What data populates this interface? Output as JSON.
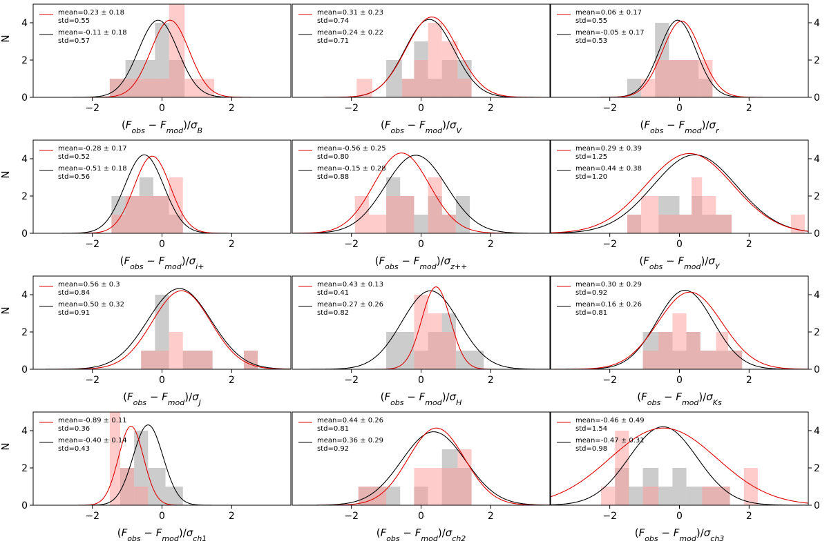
{
  "figure": {
    "ylabel": "N",
    "ylim": [
      0,
      5
    ],
    "yticks": [
      0,
      2,
      4
    ],
    "xlim": [
      -3.7,
      3.7
    ],
    "xticks": [
      -2,
      0,
      2
    ],
    "colors": {
      "red_bar": "#ff9a9a",
      "red_opacity": 0.5,
      "grey_bar": "#9a9a9a",
      "grey_opacity": 0.5,
      "red_line": "#e00000",
      "black_line": "#000000",
      "axes": "#000000"
    }
  },
  "chart_data": [
    {
      "type": "bar",
      "title": "",
      "xlabel": "(Fobs − Fmod)/σ",
      "xlabel_sub": "B",
      "legend": {
        "red": [
          "mean=0.23 ± 0.18",
          "std=0.55"
        ],
        "black": [
          "mean=-0.11 ± 0.18",
          "std=0.57"
        ]
      },
      "red_bars": [
        {
          "x0": -1.5,
          "x1": -0.65,
          "h": 1
        },
        {
          "x0": -0.65,
          "x1": -0.2,
          "h": 1
        },
        {
          "x0": -0.2,
          "x1": 0.2,
          "h": 1
        },
        {
          "x0": 0.2,
          "x1": 0.65,
          "h": 5
        },
        {
          "x0": 0.65,
          "x1": 1.5,
          "h": 1
        }
      ],
      "grey_bars": [
        {
          "x0": -1.5,
          "x1": -1.05,
          "h": 1
        },
        {
          "x0": -1.05,
          "x1": -0.2,
          "h": 2
        },
        {
          "x0": -0.2,
          "x1": 0.2,
          "h": 4
        },
        {
          "x0": 0.2,
          "x1": 0.65,
          "h": 2
        }
      ],
      "red_curve": {
        "mean": 0.23,
        "std": 0.55,
        "scale": 4.14
      },
      "black_curve": {
        "mean": -0.11,
        "std": 0.57,
        "scale": 4.14
      }
    },
    {
      "type": "bar",
      "title": "",
      "xlabel": "(Fobs − Fmod)/σ",
      "xlabel_sub": "V",
      "legend": {
        "red": [
          "mean=0.31 ± 0.23",
          "std=0.74"
        ],
        "black": [
          "mean=0.24 ± 0.22",
          "std=0.71"
        ]
      },
      "red_bars": [
        {
          "x0": -1.85,
          "x1": -1.4,
          "h": 1
        },
        {
          "x0": -0.55,
          "x1": -0.2,
          "h": 1
        },
        {
          "x0": -0.2,
          "x1": 0.2,
          "h": 2
        },
        {
          "x0": 0.2,
          "x1": 0.6,
          "h": 4
        },
        {
          "x0": 0.6,
          "x1": 1.05,
          "h": 3
        },
        {
          "x0": 1.05,
          "x1": 1.45,
          "h": 1
        }
      ],
      "grey_bars": [
        {
          "x0": -1.0,
          "x1": -0.55,
          "h": 2
        },
        {
          "x0": -0.55,
          "x1": -0.2,
          "h": 1
        },
        {
          "x0": -0.2,
          "x1": 0.2,
          "h": 3
        },
        {
          "x0": 0.2,
          "x1": 0.6,
          "h": 1
        },
        {
          "x0": 0.6,
          "x1": 1.05,
          "h": 2
        },
        {
          "x0": 1.05,
          "x1": 1.45,
          "h": 2
        }
      ],
      "red_curve": {
        "mean": 0.31,
        "std": 0.74,
        "scale": 4.31
      },
      "black_curve": {
        "mean": 0.24,
        "std": 0.71,
        "scale": 4.18
      }
    },
    {
      "type": "bar",
      "title": "",
      "xlabel": "(Fobs − Fmod)/σ",
      "xlabel_sub": "r",
      "legend": {
        "red": [
          "mean=0.06 ± 0.17",
          "std=0.55"
        ],
        "black": [
          "mean=-0.05 ± 0.17",
          "std=0.53"
        ]
      },
      "red_bars": [
        {
          "x0": -1.1,
          "x1": -0.7,
          "h": 1
        },
        {
          "x0": -0.7,
          "x1": -0.3,
          "h": 2
        },
        {
          "x0": -0.3,
          "x1": 0.15,
          "h": 2
        },
        {
          "x0": 0.15,
          "x1": 0.55,
          "h": 2
        },
        {
          "x0": 0.55,
          "x1": 0.95,
          "h": 2
        }
      ],
      "grey_bars": [
        {
          "x0": -1.5,
          "x1": -1.1,
          "h": 1
        },
        {
          "x0": -0.7,
          "x1": -0.3,
          "h": 4
        },
        {
          "x0": -0.3,
          "x1": 0.15,
          "h": 2
        },
        {
          "x0": 0.15,
          "x1": 0.55,
          "h": 2
        },
        {
          "x0": 0.55,
          "x1": 0.95,
          "h": 1
        }
      ],
      "red_curve": {
        "mean": 0.06,
        "std": 0.55,
        "scale": 4.09
      },
      "black_curve": {
        "mean": -0.05,
        "std": 0.53,
        "scale": 4.14
      }
    },
    {
      "type": "bar",
      "title": "",
      "xlabel": "(Fobs − Fmod)/σ",
      "xlabel_sub": "i+",
      "legend": {
        "red": [
          "mean=-0.28 ± 0.17",
          "std=0.52"
        ],
        "black": [
          "mean=-0.51 ± 0.18",
          "std=0.56"
        ]
      },
      "red_bars": [
        {
          "x0": -1.45,
          "x1": -1.05,
          "h": 1
        },
        {
          "x0": -1.05,
          "x1": -0.65,
          "h": 2
        },
        {
          "x0": -0.65,
          "x1": -0.25,
          "h": 2
        },
        {
          "x0": -0.25,
          "x1": 0.2,
          "h": 2
        },
        {
          "x0": 0.2,
          "x1": 0.6,
          "h": 3
        }
      ],
      "grey_bars": [
        {
          "x0": -1.45,
          "x1": -1.05,
          "h": 2
        },
        {
          "x0": -1.05,
          "x1": -0.65,
          "h": 2
        },
        {
          "x0": -0.65,
          "x1": -0.25,
          "h": 3
        },
        {
          "x0": -0.25,
          "x1": 0.2,
          "h": 2
        },
        {
          "x0": 0.2,
          "x1": 0.6,
          "h": 1
        }
      ],
      "red_curve": {
        "mean": -0.28,
        "std": 0.52,
        "scale": 4.14
      },
      "black_curve": {
        "mean": -0.51,
        "std": 0.56,
        "scale": 4.21
      }
    },
    {
      "type": "bar",
      "title": "",
      "xlabel": "(Fobs − Fmod)/σ",
      "xlabel_sub": "z++",
      "legend": {
        "red": [
          "mean=-0.56 ± 0.25",
          "std=0.80"
        ],
        "black": [
          "mean=-0.15 ± 0.28",
          "std=0.88"
        ]
      },
      "red_bars": [
        {
          "x0": -1.9,
          "x1": -1.5,
          "h": 2
        },
        {
          "x0": -1.5,
          "x1": -1.0,
          "h": 1
        },
        {
          "x0": -1.0,
          "x1": -0.6,
          "h": 2
        },
        {
          "x0": -0.6,
          "x1": -0.2,
          "h": 2
        },
        {
          "x0": 0.2,
          "x1": 0.6,
          "h": 3
        },
        {
          "x0": 0.6,
          "x1": 1.0,
          "h": 1
        }
      ],
      "grey_bars": [
        {
          "x0": -1.0,
          "x1": -0.6,
          "h": 3
        },
        {
          "x0": -0.6,
          "x1": -0.2,
          "h": 2
        },
        {
          "x0": -0.2,
          "x1": 0.2,
          "h": 1
        },
        {
          "x0": 0.2,
          "x1": 0.6,
          "h": 2
        },
        {
          "x0": 0.6,
          "x1": 1.0,
          "h": 1
        },
        {
          "x0": 1.0,
          "x1": 1.4,
          "h": 2
        }
      ],
      "red_curve": {
        "mean": -0.56,
        "std": 0.8,
        "scale": 4.31
      },
      "black_curve": {
        "mean": -0.15,
        "std": 0.88,
        "scale": 4.19
      }
    },
    {
      "type": "bar",
      "title": "",
      "xlabel": "(Fobs − Fmod)/σ",
      "xlabel_sub": "Y",
      "legend": {
        "red": [
          "mean=0.29 ± 0.39",
          "std=1.25"
        ],
        "black": [
          "mean=0.44 ± 0.38",
          "std=1.20"
        ]
      },
      "red_bars": [
        {
          "x0": -1.5,
          "x1": -1.1,
          "h": 1
        },
        {
          "x0": -1.1,
          "x1": -0.6,
          "h": 2
        },
        {
          "x0": -0.6,
          "x1": 0.0,
          "h": 1
        },
        {
          "x0": 0.0,
          "x1": 0.35,
          "h": 1
        },
        {
          "x0": 0.35,
          "x1": 0.65,
          "h": 3
        },
        {
          "x0": 0.65,
          "x1": 1.05,
          "h": 2
        },
        {
          "x0": 1.05,
          "x1": 1.5,
          "h": 1
        },
        {
          "x0": 3.2,
          "x1": 3.6,
          "h": 1
        }
      ],
      "grey_bars": [
        {
          "x0": -1.5,
          "x1": -1.1,
          "h": 1
        },
        {
          "x0": -0.6,
          "x1": 0.0,
          "h": 2
        },
        {
          "x0": 0.0,
          "x1": 0.35,
          "h": 1
        },
        {
          "x0": 0.35,
          "x1": 0.65,
          "h": 2
        },
        {
          "x0": 0.65,
          "x1": 1.05,
          "h": 1
        },
        {
          "x0": 1.05,
          "x1": 1.5,
          "h": 1
        }
      ],
      "red_curve": {
        "mean": 0.29,
        "std": 1.25,
        "scale": 4.28
      },
      "black_curve": {
        "mean": 0.44,
        "std": 1.2,
        "scale": 4.21
      }
    },
    {
      "type": "bar",
      "title": "",
      "xlabel": "(Fobs − Fmod)/σ",
      "xlabel_sub": "J",
      "legend": {
        "red": [
          "mean=0.56 ± 0.3",
          "std=0.84"
        ],
        "black": [
          "mean=0.50 ± 0.32",
          "std=0.91"
        ]
      },
      "red_bars": [
        {
          "x0": -0.6,
          "x1": -0.2,
          "h": 1
        },
        {
          "x0": -0.2,
          "x1": 0.2,
          "h": 1
        },
        {
          "x0": 0.2,
          "x1": 0.6,
          "h": 2
        },
        {
          "x0": 0.6,
          "x1": 1.45,
          "h": 1
        },
        {
          "x0": 2.35,
          "x1": 2.75,
          "h": 1
        }
      ],
      "grey_bars": [
        {
          "x0": -0.6,
          "x1": -0.2,
          "h": 1
        },
        {
          "x0": -0.2,
          "x1": 0.2,
          "h": 4
        },
        {
          "x0": 0.6,
          "x1": 1.45,
          "h": 1
        },
        {
          "x0": 2.35,
          "x1": 2.75,
          "h": 1
        }
      ],
      "red_curve": {
        "mean": 0.56,
        "std": 0.84,
        "scale": 4.21
      },
      "black_curve": {
        "mean": 0.5,
        "std": 0.91,
        "scale": 4.33
      }
    },
    {
      "type": "bar",
      "title": "",
      "xlabel": "(Fobs − Fmod)/σ",
      "xlabel_sub": "H",
      "legend": {
        "red": [
          "mean=0.43 ± 0.13",
          "std=0.41"
        ],
        "black": [
          "mean=0.27 ± 0.26",
          "std=0.82"
        ]
      },
      "red_bars": [
        {
          "x0": -0.2,
          "x1": 0.2,
          "h": 4
        },
        {
          "x0": 0.2,
          "x1": 0.6,
          "h": 3
        },
        {
          "x0": 0.6,
          "x1": 1.0,
          "h": 2
        }
      ],
      "grey_bars": [
        {
          "x0": -1.0,
          "x1": -0.2,
          "h": 2
        },
        {
          "x0": -0.2,
          "x1": 0.2,
          "h": 1
        },
        {
          "x0": 0.2,
          "x1": 0.6,
          "h": 2
        },
        {
          "x0": 0.6,
          "x1": 1.0,
          "h": 3
        },
        {
          "x0": 1.0,
          "x1": 1.8,
          "h": 1
        }
      ],
      "red_curve": {
        "mean": 0.43,
        "std": 0.41,
        "scale": 4.42
      },
      "black_curve": {
        "mean": 0.27,
        "std": 0.82,
        "scale": 4.21
      }
    },
    {
      "type": "bar",
      "title": "",
      "xlabel": "(Fobs − Fmod)/σ",
      "xlabel_sub": "Ks",
      "legend": {
        "red": [
          "mean=0.30 ± 0.29",
          "std=0.92"
        ],
        "black": [
          "mean=0.16 ± 0.26",
          "std=0.81"
        ]
      },
      "red_bars": [
        {
          "x0": -1.05,
          "x1": -0.6,
          "h": 1
        },
        {
          "x0": -0.6,
          "x1": -0.2,
          "h": 2
        },
        {
          "x0": -0.2,
          "x1": 0.2,
          "h": 3
        },
        {
          "x0": 0.2,
          "x1": 0.6,
          "h": 2
        },
        {
          "x0": 0.6,
          "x1": 1.05,
          "h": 1
        },
        {
          "x0": 1.05,
          "x1": 1.4,
          "h": 2
        },
        {
          "x0": 1.4,
          "x1": 1.8,
          "h": 1
        }
      ],
      "grey_bars": [
        {
          "x0": -1.05,
          "x1": -0.6,
          "h": 2
        },
        {
          "x0": -0.6,
          "x1": -0.2,
          "h": 2
        },
        {
          "x0": -0.2,
          "x1": 0.2,
          "h": 1
        },
        {
          "x0": 0.2,
          "x1": 0.6,
          "h": 2
        },
        {
          "x0": 0.6,
          "x1": 1.05,
          "h": 1
        },
        {
          "x0": 1.05,
          "x1": 1.4,
          "h": 1
        },
        {
          "x0": 1.4,
          "x1": 1.8,
          "h": 1
        }
      ],
      "red_curve": {
        "mean": 0.3,
        "std": 0.92,
        "scale": 4.14
      },
      "black_curve": {
        "mean": 0.16,
        "std": 0.81,
        "scale": 4.24
      }
    },
    {
      "type": "bar",
      "title": "",
      "xlabel": "(Fobs − Fmod)/σ",
      "xlabel_sub": "ch1",
      "legend": {
        "red": [
          "mean=-0.89 ± 0.11",
          "std=0.36"
        ],
        "black": [
          "mean=-0.40 ± 0.14",
          "std=0.43"
        ]
      },
      "red_bars": [
        {
          "x0": -1.5,
          "x1": -1.2,
          "h": 5
        },
        {
          "x0": -1.2,
          "x1": -0.8,
          "h": 2
        },
        {
          "x0": -0.8,
          "x1": -0.4,
          "h": 1
        }
      ],
      "grey_bars": [
        {
          "x0": -1.2,
          "x1": -0.8,
          "h": 2
        },
        {
          "x0": -0.8,
          "x1": -0.4,
          "h": 4
        },
        {
          "x0": -0.4,
          "x1": 0.1,
          "h": 2
        },
        {
          "x0": 0.1,
          "x1": 0.6,
          "h": 1
        }
      ],
      "red_curve": {
        "mean": -0.89,
        "std": 0.36,
        "scale": 4.24
      },
      "black_curve": {
        "mean": -0.4,
        "std": 0.43,
        "scale": 4.31
      }
    },
    {
      "type": "bar",
      "title": "",
      "xlabel": "(Fobs − Fmod)/σ",
      "xlabel_sub": "ch2",
      "legend": {
        "red": [
          "mean=0.44 ± 0.26",
          "std=0.81"
        ],
        "black": [
          "mean=0.36 ± 0.29",
          "std=0.92"
        ]
      },
      "red_bars": [
        {
          "x0": -1.8,
          "x1": -1.4,
          "h": 1
        },
        {
          "x0": -1.4,
          "x1": -1.0,
          "h": 1
        },
        {
          "x0": -0.2,
          "x1": 0.6,
          "h": 2
        },
        {
          "x0": 0.6,
          "x1": 1.05,
          "h": 2
        },
        {
          "x0": 1.05,
          "x1": 1.45,
          "h": 3
        }
      ],
      "grey_bars": [
        {
          "x0": -1.8,
          "x1": -1.4,
          "h": 1
        },
        {
          "x0": -1.4,
          "x1": -1.0,
          "h": 1
        },
        {
          "x0": -1.0,
          "x1": -0.6,
          "h": 1
        },
        {
          "x0": -0.2,
          "x1": 0.2,
          "h": 1
        },
        {
          "x0": 0.6,
          "x1": 1.05,
          "h": 3
        },
        {
          "x0": 1.05,
          "x1": 1.45,
          "h": 2
        }
      ],
      "red_curve": {
        "mean": 0.44,
        "std": 0.81,
        "scale": 4.14
      },
      "black_curve": {
        "mean": 0.36,
        "std": 0.92,
        "scale": 3.94
      }
    },
    {
      "type": "bar",
      "title": "",
      "xlabel": "(Fobs − Fmod)/σ",
      "xlabel_sub": "ch3",
      "legend": {
        "red": [
          "mean=-0.46 ± 0.49",
          "std=1.54"
        ],
        "black": [
          "mean=-0.47 ± 0.31",
          "std=0.98"
        ]
      },
      "red_bars": [
        {
          "x0": -2.25,
          "x1": -1.85,
          "h": 1
        },
        {
          "x0": -1.85,
          "x1": -1.45,
          "h": 4
        },
        {
          "x0": -1.05,
          "x1": -0.6,
          "h": 1
        },
        {
          "x0": 0.65,
          "x1": 1.05,
          "h": 1
        },
        {
          "x0": 1.05,
          "x1": 1.45,
          "h": 1
        },
        {
          "x0": 1.85,
          "x1": 2.25,
          "h": 2
        }
      ],
      "grey_bars": [
        {
          "x0": -1.85,
          "x1": -1.45,
          "h": 2
        },
        {
          "x0": -1.45,
          "x1": -1.05,
          "h": 1
        },
        {
          "x0": -1.05,
          "x1": -0.6,
          "h": 2
        },
        {
          "x0": -0.6,
          "x1": -0.2,
          "h": 1
        },
        {
          "x0": -0.2,
          "x1": 0.2,
          "h": 2
        },
        {
          "x0": 0.2,
          "x1": 0.65,
          "h": 1
        },
        {
          "x0": 0.65,
          "x1": 1.05,
          "h": 1
        },
        {
          "x0": 1.05,
          "x1": 1.45,
          "h": 1
        }
      ],
      "red_curve": {
        "mean": -0.46,
        "std": 1.54,
        "scale": 4.14
      },
      "black_curve": {
        "mean": -0.47,
        "std": 0.98,
        "scale": 4.21
      }
    }
  ]
}
